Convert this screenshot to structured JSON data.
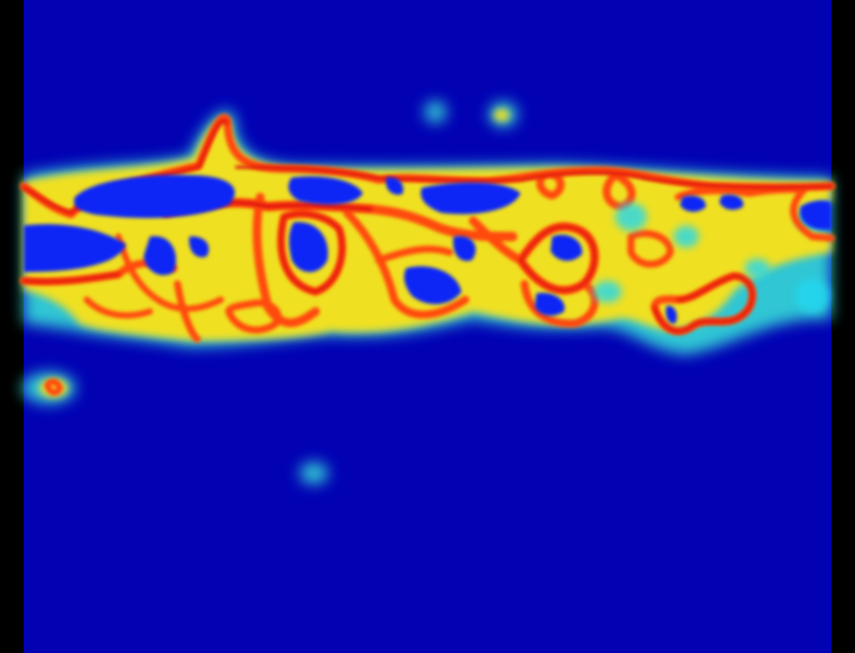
{
  "image": {
    "kind": "heatmap",
    "colormap": "jet",
    "background_color": "#000000",
    "field_color": "#0202b3",
    "palette": {
      "deep_blue": "#0303b8",
      "blue": "#0a28f5",
      "cyan": "#22d8f0",
      "aqua_green": "#6ef0b0",
      "yellow": "#f2f020",
      "orange": "#ff8c10",
      "red_orange": "#ff4410",
      "red": "#e8140a"
    },
    "has_text": false,
    "has_axes": false,
    "has_legend": false
  }
}
